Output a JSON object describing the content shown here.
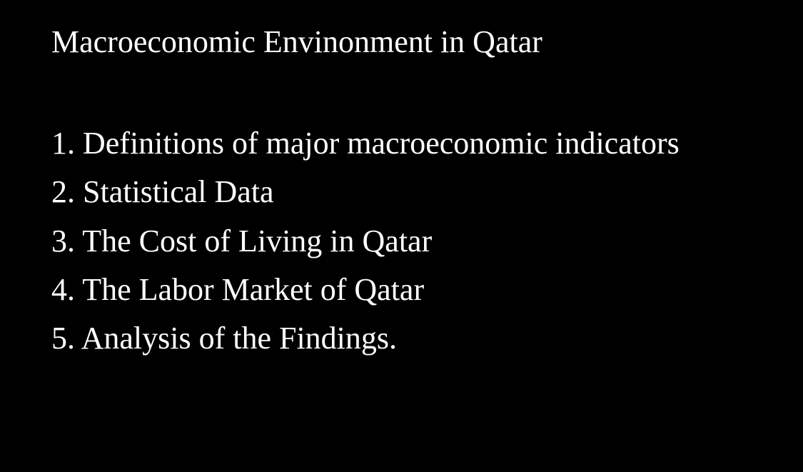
{
  "document": {
    "title": "Macroeconomic Envinonment in Qatar",
    "items": [
      {
        "number": "1.",
        "text": "Definitions of major macroeconomic indicators"
      },
      {
        "number": "2.",
        "text": "Statistical Data"
      },
      {
        "number": "3.",
        "text": "The Cost of Living in Qatar"
      },
      {
        "number": "4.",
        "text": "The Labor Market of Qatar"
      },
      {
        "number": "5.",
        "text": "Analysis of the Findings."
      }
    ],
    "colors": {
      "background": "#000000",
      "text": "#ffffff"
    },
    "typography": {
      "title_fontsize": 44,
      "item_fontsize": 44,
      "font_family": "Georgia, serif",
      "line_height": 1.55
    }
  }
}
